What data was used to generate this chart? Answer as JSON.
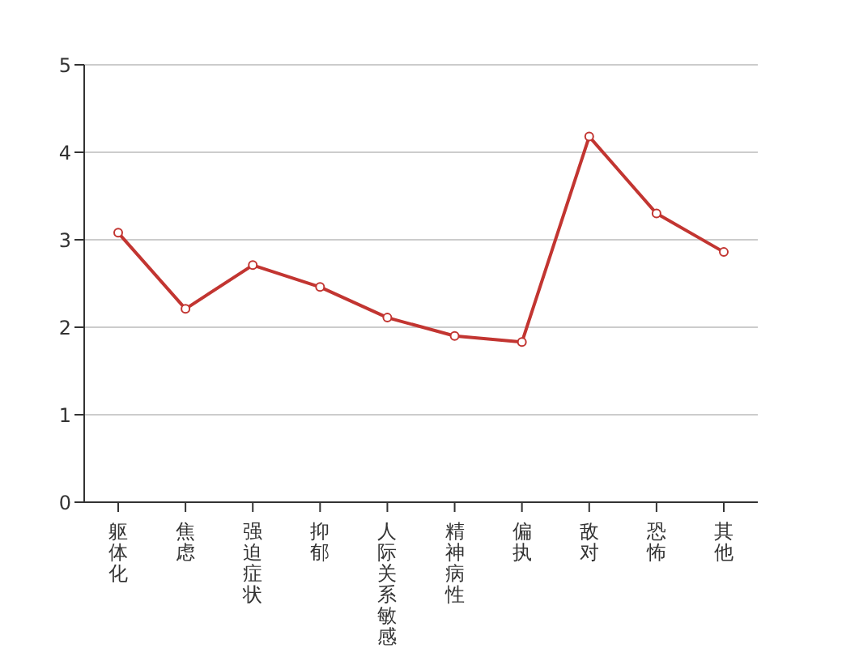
{
  "chart_data": {
    "type": "line",
    "categories": [
      "躯体化",
      "焦虑",
      "强迫症状",
      "抑郁",
      "人际关系敏感",
      "精神病性",
      "偏执",
      "敌对",
      "恐怖",
      "其他"
    ],
    "series": [
      {
        "color": "#c23531",
        "values": [
          3.08,
          2.21,
          2.71,
          2.46,
          2.11,
          1.9,
          1.83,
          4.18,
          3.3,
          2.86
        ]
      }
    ],
    "ylim": [
      0,
      5
    ],
    "yticks": [
      0,
      1,
      2,
      3,
      4,
      5
    ],
    "grid": "y",
    "marker": "circle",
    "line_style": "solid"
  }
}
